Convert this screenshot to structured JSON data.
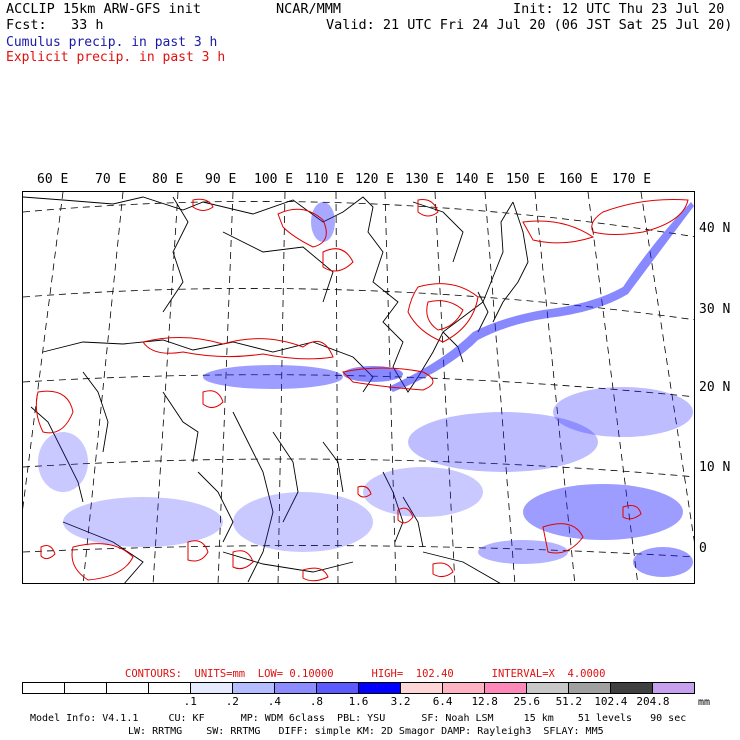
{
  "header": {
    "line1_left": "ACCLIP 15km ARW-GFS init",
    "line1_center": "NCAR/MMM",
    "line1_right": "Init: 12 UTC Thu 23 Jul 20",
    "line2_left": "Fcst:   33 h",
    "line2_right": "Valid: 21 UTC Fri 24 Jul 20 (06 JST Sat 25 Jul 20)",
    "line3": "Cumulus precip. in past 3 h",
    "line4": "Explicit precip. in past 3 h"
  },
  "map": {
    "lon_labels": [
      "60 E",
      "70 E",
      "80 E",
      "90 E",
      "100 E",
      "110 E",
      "120 E",
      "130 E",
      "140 E",
      "150 E",
      "160 E",
      "170 E"
    ],
    "lat_labels": [
      "40 N",
      "30 N",
      "20 N",
      "10 N",
      "0"
    ],
    "colors": {
      "cumulus": "#1a1ae6",
      "explicit": "#e00000",
      "coast": "#000000",
      "grid": "#000000"
    }
  },
  "contours_line": "CONTOURS:  UNITS=mm  LOW= 0.10000      HIGH=  102.40      INTERVAL=X  4.0000",
  "colorbar": {
    "colors": [
      "#ffffff",
      "#ffffff",
      "#ffffff",
      "#ffffff",
      "#e6ebff",
      "#b4bdff",
      "#8c8cff",
      "#5a5aff",
      "#0000ff",
      "#ffd6d6",
      "#ffb3c2",
      "#ff88bb",
      "#c8c8c8",
      "#a0a0a0",
      "#404040",
      "#c8a0f0"
    ],
    "ticks": [
      ".1",
      ".2",
      ".4",
      ".8",
      "1.6",
      "3.2",
      "6.4",
      "12.8",
      "25.6",
      "51.2",
      "102.4",
      "204.8"
    ],
    "unit": "mm"
  },
  "footer": {
    "line1": "Model Info: V4.1.1     CU: KF      MP: WDM 6class  PBL: YSU      SF: Noah LSM     15 km    51 levels   90 sec",
    "line2": "LW: RRTMG    SW: RRTMG   DIFF: simple KM: 2D Smagor DAMP: Rayleigh3  SFLAY: MM5"
  }
}
